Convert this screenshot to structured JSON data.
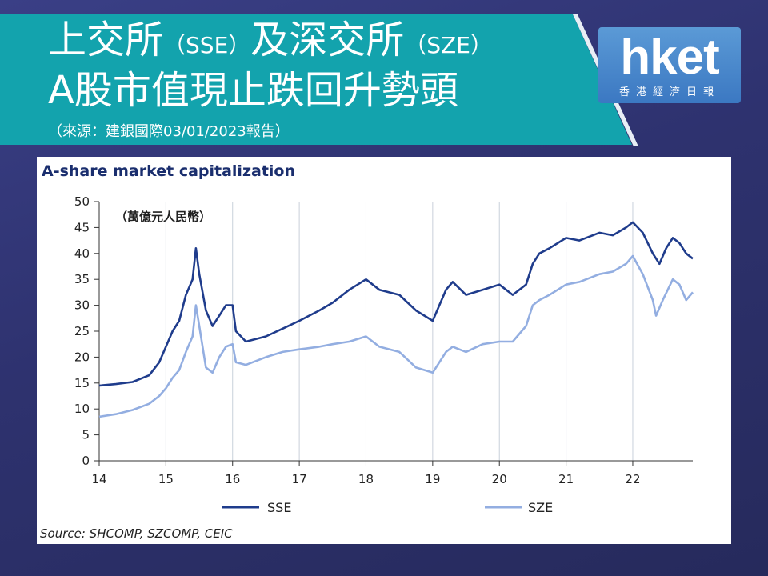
{
  "header": {
    "title_line1_a": "上交所",
    "title_line1_b": "（SSE）",
    "title_line1_c": "及深交所",
    "title_line1_d": "（SZE）",
    "title_line2": "A股市值現止跌回升勢頭",
    "source": "（來源：建銀國際03/01/2023報告）"
  },
  "logo": {
    "main": "hket",
    "sub": "香港經濟日報"
  },
  "colors": {
    "banner": "#13a3ad",
    "sse": "#1f3c8c",
    "sze": "#93aee1",
    "grid": "#c8d0da"
  },
  "chart_data": {
    "type": "line",
    "title": "A-share market capitalization",
    "unit_label": "（萬億元人民幣）",
    "ylim": [
      0,
      50
    ],
    "xlim": [
      2014,
      2022.9
    ],
    "y_ticks": [
      0,
      5,
      10,
      15,
      20,
      25,
      30,
      35,
      40,
      45,
      50
    ],
    "x_ticks": [
      {
        "value": 2014,
        "label": "14"
      },
      {
        "value": 2015,
        "label": "15"
      },
      {
        "value": 2016,
        "label": "16"
      },
      {
        "value": 2017,
        "label": "17"
      },
      {
        "value": 2018,
        "label": "18"
      },
      {
        "value": 2019,
        "label": "19"
      },
      {
        "value": 2020,
        "label": "20"
      },
      {
        "value": 2021,
        "label": "21"
      },
      {
        "value": 2022,
        "label": "22"
      }
    ],
    "grid": "vertical",
    "legend_position": "bottom",
    "source": "Source: SHCOMP, SZCOMP, CEIC",
    "series": [
      {
        "name": "SSE",
        "color": "#1f3c8c",
        "points": [
          [
            2014.0,
            14.5
          ],
          [
            2014.25,
            14.8
          ],
          [
            2014.5,
            15.2
          ],
          [
            2014.75,
            16.5
          ],
          [
            2014.9,
            19.0
          ],
          [
            2015.0,
            22.0
          ],
          [
            2015.1,
            25.0
          ],
          [
            2015.2,
            27.0
          ],
          [
            2015.3,
            32.0
          ],
          [
            2015.4,
            35.0
          ],
          [
            2015.45,
            41.0
          ],
          [
            2015.5,
            36.0
          ],
          [
            2015.6,
            29.0
          ],
          [
            2015.7,
            26.0
          ],
          [
            2015.8,
            28.0
          ],
          [
            2015.9,
            30.0
          ],
          [
            2016.0,
            30.0
          ],
          [
            2016.05,
            25.0
          ],
          [
            2016.2,
            23.0
          ],
          [
            2016.5,
            24.0
          ],
          [
            2016.75,
            25.5
          ],
          [
            2017.0,
            27.0
          ],
          [
            2017.3,
            29.0
          ],
          [
            2017.5,
            30.5
          ],
          [
            2017.75,
            33.0
          ],
          [
            2018.0,
            35.0
          ],
          [
            2018.2,
            33.0
          ],
          [
            2018.5,
            32.0
          ],
          [
            2018.75,
            29.0
          ],
          [
            2019.0,
            27.0
          ],
          [
            2019.2,
            33.0
          ],
          [
            2019.3,
            34.5
          ],
          [
            2019.5,
            32.0
          ],
          [
            2019.75,
            33.0
          ],
          [
            2020.0,
            34.0
          ],
          [
            2020.2,
            32.0
          ],
          [
            2020.4,
            34.0
          ],
          [
            2020.5,
            38.0
          ],
          [
            2020.6,
            40.0
          ],
          [
            2020.75,
            41.0
          ],
          [
            2021.0,
            43.0
          ],
          [
            2021.2,
            42.5
          ],
          [
            2021.5,
            44.0
          ],
          [
            2021.7,
            43.5
          ],
          [
            2021.9,
            45.0
          ],
          [
            2022.0,
            46.0
          ],
          [
            2022.15,
            44.0
          ],
          [
            2022.3,
            40.0
          ],
          [
            2022.4,
            38.0
          ],
          [
            2022.5,
            41.0
          ],
          [
            2022.6,
            43.0
          ],
          [
            2022.7,
            42.0
          ],
          [
            2022.8,
            40.0
          ],
          [
            2022.9,
            39.0
          ]
        ]
      },
      {
        "name": "SZE",
        "color": "#93aee1",
        "points": [
          [
            2014.0,
            8.5
          ],
          [
            2014.25,
            9.0
          ],
          [
            2014.5,
            9.8
          ],
          [
            2014.75,
            11.0
          ],
          [
            2014.9,
            12.5
          ],
          [
            2015.0,
            14.0
          ],
          [
            2015.1,
            16.0
          ],
          [
            2015.2,
            17.5
          ],
          [
            2015.3,
            21.0
          ],
          [
            2015.4,
            24.0
          ],
          [
            2015.45,
            30.0
          ],
          [
            2015.5,
            26.0
          ],
          [
            2015.6,
            18.0
          ],
          [
            2015.7,
            17.0
          ],
          [
            2015.8,
            20.0
          ],
          [
            2015.9,
            22.0
          ],
          [
            2016.0,
            22.5
          ],
          [
            2016.05,
            19.0
          ],
          [
            2016.2,
            18.5
          ],
          [
            2016.5,
            20.0
          ],
          [
            2016.75,
            21.0
          ],
          [
            2017.0,
            21.5
          ],
          [
            2017.3,
            22.0
          ],
          [
            2017.5,
            22.5
          ],
          [
            2017.75,
            23.0
          ],
          [
            2018.0,
            24.0
          ],
          [
            2018.2,
            22.0
          ],
          [
            2018.5,
            21.0
          ],
          [
            2018.75,
            18.0
          ],
          [
            2019.0,
            17.0
          ],
          [
            2019.2,
            21.0
          ],
          [
            2019.3,
            22.0
          ],
          [
            2019.5,
            21.0
          ],
          [
            2019.75,
            22.5
          ],
          [
            2020.0,
            23.0
          ],
          [
            2020.2,
            23.0
          ],
          [
            2020.4,
            26.0
          ],
          [
            2020.5,
            30.0
          ],
          [
            2020.6,
            31.0
          ],
          [
            2020.75,
            32.0
          ],
          [
            2021.0,
            34.0
          ],
          [
            2021.2,
            34.5
          ],
          [
            2021.5,
            36.0
          ],
          [
            2021.7,
            36.5
          ],
          [
            2021.9,
            38.0
          ],
          [
            2022.0,
            39.5
          ],
          [
            2022.15,
            36.0
          ],
          [
            2022.3,
            31.0
          ],
          [
            2022.35,
            28.0
          ],
          [
            2022.45,
            31.0
          ],
          [
            2022.6,
            35.0
          ],
          [
            2022.7,
            34.0
          ],
          [
            2022.8,
            31.0
          ],
          [
            2022.9,
            32.5
          ]
        ]
      }
    ]
  }
}
